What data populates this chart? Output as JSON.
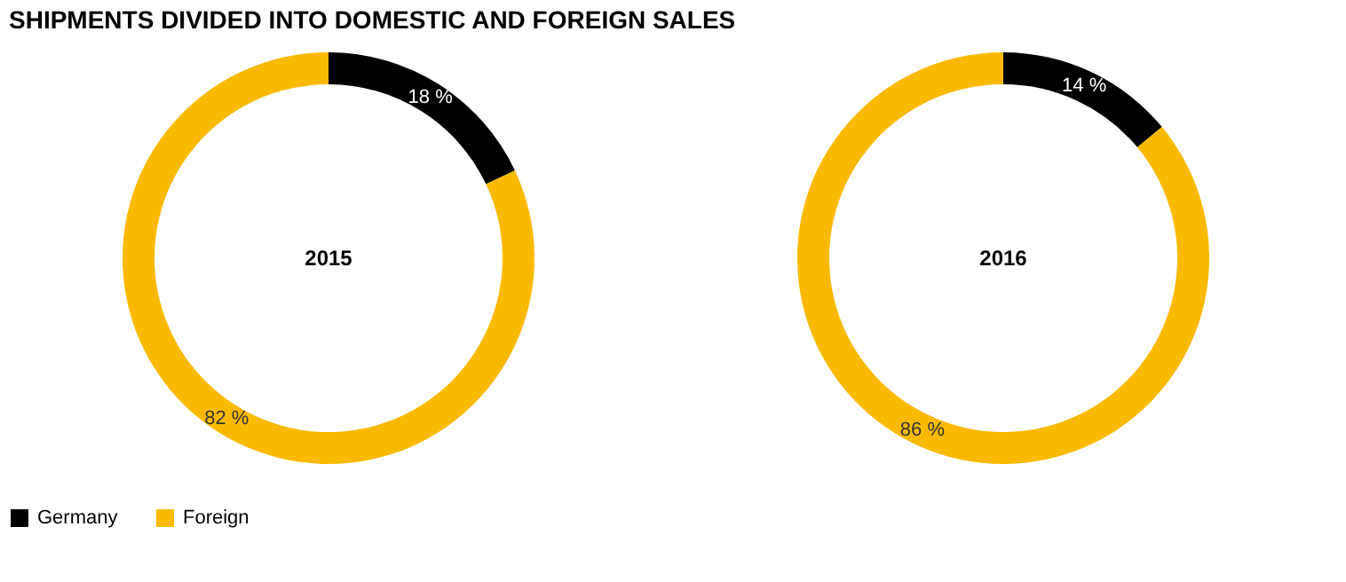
{
  "chart_data": {
    "type": "donut",
    "title": "SHIPMENTS DIVIDED INTO DOMESTIC AND FOREIGN SALES",
    "categories": [
      "Germany",
      "Foreign"
    ],
    "colors": [
      "#000000",
      "#fbba00"
    ],
    "legend": "bottom left",
    "series": [
      {
        "name": "2015",
        "values": [
          18,
          82
        ],
        "value_labels": [
          "18 %",
          "82 %"
        ]
      },
      {
        "name": "2016",
        "values": [
          14,
          86
        ],
        "value_labels": [
          "14 %",
          "86 %"
        ]
      }
    ]
  }
}
